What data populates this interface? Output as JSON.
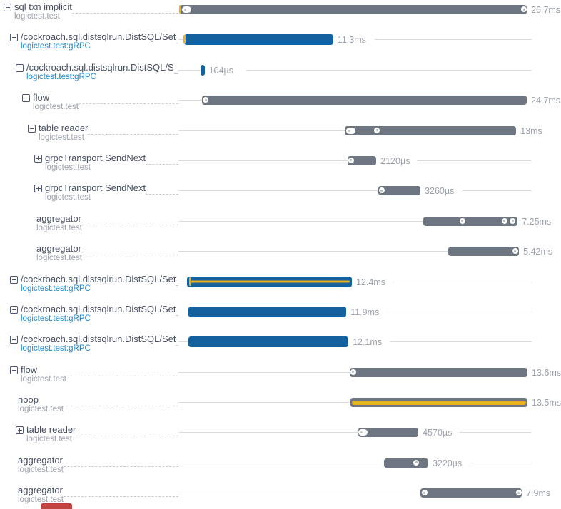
{
  "colors": {
    "bar_gray": "#6e7781",
    "bar_blue": "#13619e",
    "accent_yellow": "#e9b01e",
    "clipped_bar_red": "#bf4341",
    "title_text": "#474f63",
    "subtitle_text": "#9da3ad",
    "subtitle_link": "#2189cc",
    "duration_text": "#9aa1aa",
    "timeline_line": "#d9dbde",
    "leader_dash": "#c8ccd2",
    "expander_icon": "#4c5670",
    "marker_white": "#ffffff"
  },
  "rows": [
    {
      "title": "sql txn implicit",
      "subtitle": "logictest.test",
      "subtitle_style": "gray",
      "depth": 0,
      "expander": "minus",
      "duration": "26.7ms",
      "bar": {
        "color": "gray",
        "start_pct": 0.4,
        "end_pct": 98.6,
        "stripe": "none",
        "markers": [
          {
            "type": "ytick",
            "pos_pct": 0.5
          },
          {
            "type": "pill",
            "pos_pct": 2.4
          },
          {
            "type": "dot",
            "pos_pct": 97.8
          }
        ]
      }
    },
    {
      "title": "/cockroach.sql.distsqlrun.DistSQL/Set",
      "subtitle": "logictest.test:gRPC",
      "subtitle_style": "blue",
      "depth": 1,
      "expander": "minus",
      "duration": "11.3ms",
      "bar": {
        "color": "blue",
        "start_pct": 1.6,
        "end_pct": 43.8,
        "stripe": "none",
        "markers": [
          {
            "type": "ytick",
            "pos_pct": 1.8
          }
        ]
      }
    },
    {
      "title": "/cockroach.sql.distsqlrun.DistSQL/S",
      "subtitle": "logictest.test:gRPC",
      "subtitle_style": "blue",
      "depth": 2,
      "expander": "minus",
      "duration": "104µs",
      "bar": {
        "color": "blue",
        "start_pct": 6.3,
        "end_pct": 7.4,
        "stripe": "none",
        "markers": []
      }
    },
    {
      "title": "flow",
      "subtitle": "logictest.test",
      "subtitle_style": "gray",
      "depth": 3,
      "expander": "minus",
      "duration": "24.7ms",
      "bar": {
        "color": "gray",
        "start_pct": 6.7,
        "end_pct": 98.6,
        "stripe": "none",
        "markers": [
          {
            "type": "dot",
            "pos_pct": 7.7
          }
        ]
      }
    },
    {
      "title": "table reader",
      "subtitle": "logictest.test",
      "subtitle_style": "gray",
      "depth": 4,
      "expander": "minus",
      "duration": "13ms",
      "bar": {
        "color": "gray",
        "start_pct": 47.1,
        "end_pct": 95.6,
        "stripe": "none",
        "markers": [
          {
            "type": "pill",
            "pos_pct": 48.7
          },
          {
            "type": "dot",
            "pos_pct": 56.2
          }
        ]
      }
    },
    {
      "title": "grpcTransport SendNext",
      "subtitle": "logictest.test",
      "subtitle_style": "gray",
      "depth": 5,
      "expander": "plus",
      "duration": "2120µs",
      "bar": {
        "color": "gray",
        "start_pct": 47.9,
        "end_pct": 56.0,
        "stripe": "none",
        "markers": [
          {
            "type": "dot",
            "pos_pct": 48.8
          }
        ]
      }
    },
    {
      "title": "grpcTransport SendNext",
      "subtitle": "logictest.test",
      "subtitle_style": "gray",
      "depth": 5,
      "expander": "plus",
      "duration": "3260µs",
      "bar": {
        "color": "gray",
        "start_pct": 56.6,
        "end_pct": 68.5,
        "stripe": "none",
        "markers": [
          {
            "type": "dot",
            "pos_pct": 57.5
          }
        ]
      }
    },
    {
      "title": "aggregator",
      "subtitle": "logictest.test",
      "subtitle_style": "gray",
      "depth": 5,
      "expander": "none",
      "duration": "7.25ms",
      "bar": {
        "color": "gray",
        "start_pct": 69.3,
        "end_pct": 96.0,
        "stripe": "none",
        "markers": [
          {
            "type": "dot",
            "pos_pct": 80.4
          },
          {
            "type": "dot",
            "pos_pct": 92.3
          },
          {
            "type": "dot",
            "pos_pct": 94.6
          }
        ]
      }
    },
    {
      "title": "aggregator",
      "subtitle": "logictest.test",
      "subtitle_style": "gray",
      "depth": 5,
      "expander": "none",
      "duration": "5.42ms",
      "bar": {
        "color": "gray",
        "start_pct": 76.4,
        "end_pct": 96.4,
        "stripe": "none",
        "markers": [
          {
            "type": "dot",
            "pos_pct": 95.3
          }
        ]
      }
    },
    {
      "title": "/cockroach.sql.distsqlrun.DistSQL/Set",
      "subtitle": "logictest.test:gRPC",
      "subtitle_style": "blue",
      "depth": 1,
      "expander": "plus",
      "duration": "12.4ms",
      "bar": {
        "color": "blue",
        "start_pct": 2.4,
        "end_pct": 49.1,
        "stripe": "thin",
        "markers": [
          {
            "type": "ytick",
            "pos_pct": 3.4
          }
        ]
      }
    },
    {
      "title": "/cockroach.sql.distsqlrun.DistSQL/Set",
      "subtitle": "logictest.test:gRPC",
      "subtitle_style": "blue",
      "depth": 1,
      "expander": "plus",
      "duration": "11.9ms",
      "bar": {
        "color": "blue",
        "start_pct": 2.8,
        "end_pct": 47.5,
        "stripe": "none",
        "markers": []
      }
    },
    {
      "title": "/cockroach.sql.distsqlrun.DistSQL/Set",
      "subtitle": "logictest.test:gRPC",
      "subtitle_style": "blue",
      "depth": 1,
      "expander": "plus",
      "duration": "12.1ms",
      "bar": {
        "color": "blue",
        "start_pct": 2.8,
        "end_pct": 48.1,
        "stripe": "none",
        "markers": []
      }
    },
    {
      "title": "flow",
      "subtitle": "logictest.test",
      "subtitle_style": "gray",
      "depth": 1,
      "expander": "minus",
      "duration": "13.6ms",
      "bar": {
        "color": "gray",
        "start_pct": 48.5,
        "end_pct": 98.8,
        "stripe": "none",
        "markers": [
          {
            "type": "dot",
            "pos_pct": 49.4
          }
        ]
      }
    },
    {
      "title": "noop",
      "subtitle": "logictest.test",
      "subtitle_style": "gray",
      "depth": 2,
      "expander": "none",
      "duration": "13.5ms",
      "bar": {
        "color": "gray",
        "start_pct": 48.7,
        "end_pct": 98.8,
        "stripe": "thick",
        "markers": []
      }
    },
    {
      "title": "table reader",
      "subtitle": "logictest.test",
      "subtitle_style": "gray",
      "depth": 2,
      "expander": "plus",
      "duration": "4570µs",
      "bar": {
        "color": "gray",
        "start_pct": 50.9,
        "end_pct": 67.9,
        "stripe": "none",
        "markers": [
          {
            "type": "pill",
            "pos_pct": 52.3
          }
        ]
      }
    },
    {
      "title": "aggregator",
      "subtitle": "logictest.test",
      "subtitle_style": "gray",
      "depth": 2,
      "expander": "none",
      "duration": "3220µs",
      "bar": {
        "color": "gray",
        "start_pct": 58.2,
        "end_pct": 70.7,
        "stripe": "none",
        "markers": [
          {
            "type": "dot",
            "pos_pct": 67.3
          }
        ]
      }
    },
    {
      "title": "aggregator",
      "subtitle": "logictest.test",
      "subtitle_style": "gray",
      "depth": 2,
      "expander": "none",
      "duration": "7.9ms",
      "bar": {
        "color": "gray",
        "start_pct": 68.5,
        "end_pct": 97.2,
        "stripe": "none",
        "markers": [
          {
            "type": "dot",
            "pos_pct": 69.6
          },
          {
            "type": "dot",
            "pos_pct": 96.3
          }
        ]
      }
    }
  ],
  "partial_row": {
    "color": "#bf4341"
  }
}
